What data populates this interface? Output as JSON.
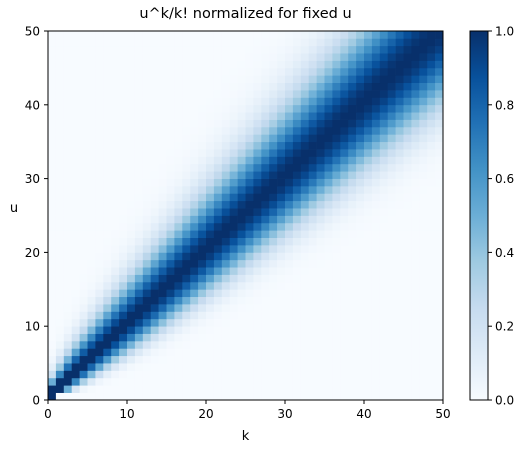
{
  "chart_data": {
    "type": "heatmap",
    "title": "u^k/k! normalized for fixed u",
    "xlabel": "k",
    "ylabel": "u",
    "x_range": [
      0,
      50
    ],
    "y_range": [
      0,
      50
    ],
    "grid_cells": 50,
    "x_ticks": [
      0,
      10,
      20,
      30,
      40,
      50
    ],
    "y_ticks": [
      0,
      10,
      20,
      30,
      40,
      50
    ],
    "value_formula": "u^k / k! divided by its maximum over k, for each fixed u",
    "colorbar": {
      "colormap": "Blues",
      "range": [
        0,
        1
      ],
      "ticks": [
        "0.0",
        "0.2",
        "0.4",
        "0.6",
        "0.8",
        "1.0"
      ]
    },
    "colors": {
      "low": "#f7fbff",
      "high": "#08306b"
    }
  }
}
